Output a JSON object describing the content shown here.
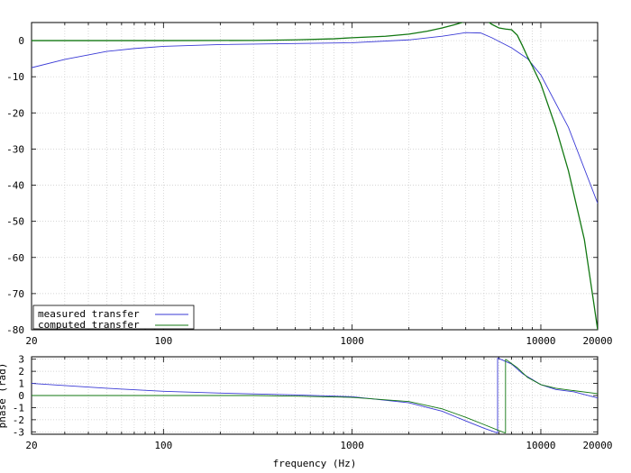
{
  "chart_data": [
    {
      "type": "line",
      "title": "",
      "xlabel": "",
      "ylabel": "",
      "x_scale": "log",
      "xlim": [
        20,
        20000
      ],
      "ylim": [
        -80,
        5
      ],
      "grid": true,
      "legend_position": "bottom-left",
      "x_tick_labels": [
        "20",
        "100",
        "1000",
        "10000",
        "20000"
      ],
      "x_ticks": [
        20,
        100,
        1000,
        10000,
        20000
      ],
      "y_ticks": [
        0,
        -10,
        -20,
        -30,
        -40,
        -50,
        -60,
        -70,
        -80
      ],
      "y_tick_labels": [
        "0",
        "-10",
        "-20",
        "-30",
        "-40",
        "-50",
        "-60",
        "-70",
        "-80"
      ],
      "series": [
        {
          "name": "measured transfer",
          "color": "#3a3ad6",
          "x": [
            20,
            30,
            50,
            70,
            100,
            200,
            500,
            1000,
            2000,
            3000,
            4000,
            4800,
            5500,
            7000,
            8500,
            10000,
            14000,
            20000
          ],
          "y": [
            -7.5,
            -5.2,
            -3.0,
            -2.2,
            -1.6,
            -1.1,
            -0.8,
            -0.6,
            0.2,
            1.2,
            2.2,
            2.1,
            0.8,
            -2.0,
            -5.0,
            -9.5,
            -24,
            -45
          ]
        },
        {
          "name": "computed transfer",
          "color": "#117711",
          "x": [
            20,
            100,
            300,
            500,
            800,
            1000,
            1500,
            2000,
            2500,
            3000,
            3500,
            4000,
            4500,
            5000,
            5500,
            6000,
            6500,
            7000,
            7500,
            8000,
            8500,
            9000,
            10000,
            12000,
            14000,
            17000,
            19000,
            20000
          ],
          "y": [
            0,
            0,
            0.05,
            0.2,
            0.5,
            0.8,
            1.2,
            1.8,
            2.6,
            3.5,
            4.4,
            5.3,
            6.2,
            6.0,
            4.5,
            3.5,
            3.2,
            3.0,
            1.5,
            -1.5,
            -4.5,
            -7.0,
            -12,
            -24,
            -36,
            -55,
            -72,
            -80
          ]
        }
      ]
    },
    {
      "type": "line",
      "title": "",
      "xlabel": "frequency (Hz)",
      "ylabel": "phase (rad)",
      "x_scale": "log",
      "xlim": [
        20,
        20000
      ],
      "ylim": [
        -3.2,
        3.2
      ],
      "grid": true,
      "x_tick_labels": [
        "20",
        "100",
        "1000",
        "10000",
        "20000"
      ],
      "x_ticks": [
        20,
        100,
        1000,
        10000,
        20000
      ],
      "y_ticks": [
        3,
        2,
        1,
        0,
        -1,
        -2,
        -3
      ],
      "y_tick_labels": [
        "3",
        "2",
        "1",
        "0",
        "-1",
        "-2",
        "-3"
      ],
      "series": [
        {
          "name": "measured transfer",
          "color": "#3a3ad6",
          "x": [
            20,
            50,
            100,
            200,
            500,
            1000,
            2000,
            3000,
            4000,
            5000,
            5900,
            5901,
            7000,
            8000,
            10000,
            12000,
            15000,
            20000
          ],
          "y": [
            1.0,
            0.6,
            0.35,
            0.2,
            0.05,
            -0.1,
            -0.6,
            -1.3,
            -2.1,
            -2.7,
            -3.1,
            3.1,
            2.6,
            1.8,
            0.9,
            0.5,
            0.3,
            -0.2
          ],
          "breaks_after": [
            10
          ]
        },
        {
          "name": "computed transfer",
          "color": "#117711",
          "x": [
            20,
            100,
            300,
            500,
            1000,
            2000,
            3000,
            4000,
            5000,
            6000,
            6500,
            6501,
            7500,
            8500,
            10000,
            12000,
            15000,
            20000
          ],
          "y": [
            0.0,
            0.0,
            0.0,
            -0.05,
            -0.15,
            -0.5,
            -1.1,
            -1.8,
            -2.4,
            -2.9,
            -3.1,
            3.0,
            2.3,
            1.5,
            0.9,
            0.6,
            0.4,
            0.15
          ],
          "breaks_after": [
            10
          ]
        }
      ]
    }
  ]
}
